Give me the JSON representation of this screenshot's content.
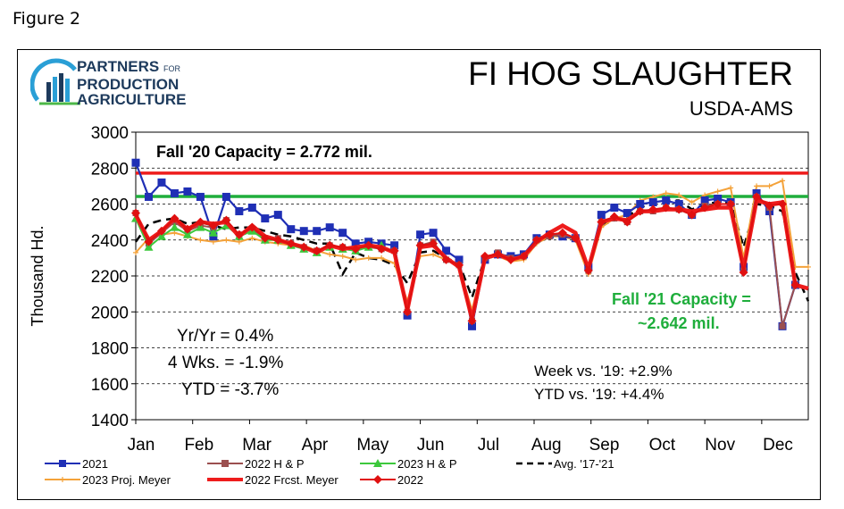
{
  "figure_label": "Figure 2",
  "logo": {
    "line1": "PARTNERS",
    "line1_small": "FOR",
    "line2": "PRODUCTION",
    "line3": "AGRICULTURE"
  },
  "chart_data": {
    "type": "line",
    "title": "FI HOG SLAUGHTER",
    "subtitle": "USDA-AMS",
    "ylabel": "Thousand Hd.",
    "ylim": [
      1400,
      3000
    ],
    "yticks": [
      1400,
      1600,
      1800,
      2000,
      2200,
      2400,
      2600,
      2800,
      3000
    ],
    "x_labels": [
      "Jan",
      "Feb",
      "Mar",
      "Apr",
      "May",
      "Jun",
      "Jul",
      "Aug",
      "Sep",
      "Oct",
      "Nov",
      "Dec"
    ],
    "x_range_weeks": [
      1,
      53
    ],
    "grid": "horizontal dashed",
    "reference_lines": [
      {
        "label": "Fall '20 Capacity = 2.772 mil.",
        "value": 2772,
        "color": "#ee1c1c"
      },
      {
        "label": "Fall '21 Capacity = ~2.642 mil.",
        "label_line1": "Fall '21 Capacity =",
        "label_line2": "~2.642 mil.",
        "value": 2642,
        "color": "#1fae3c"
      }
    ],
    "annotations": {
      "yr_yr": "Yr/Yr = 0.4%",
      "four_wks": "4 Wks. = -1.9%",
      "ytd": "YTD = -3.7%",
      "week_vs_19": "Week vs. '19:  +2.9%",
      "ytd_vs_19": "YTD vs. '19: +4.4%"
    },
    "series": [
      {
        "name": "2021",
        "color": "#1f2fb5",
        "style": "square",
        "x": [
          1,
          2,
          3,
          4,
          5,
          6,
          7,
          8,
          9,
          10,
          11,
          12,
          13,
          14,
          15,
          16,
          17,
          18,
          19,
          20,
          21,
          22,
          23,
          24,
          25,
          26,
          27,
          28,
          29,
          30,
          31,
          32,
          33,
          34,
          35,
          36,
          37,
          38,
          39,
          40,
          41,
          42,
          43,
          44,
          45,
          46,
          47,
          48,
          49,
          50,
          51,
          52
        ],
        "values": [
          2830,
          2640,
          2720,
          2660,
          2670,
          2640,
          2420,
          2640,
          2560,
          2580,
          2520,
          2540,
          2460,
          2450,
          2450,
          2470,
          2440,
          2380,
          2390,
          2380,
          2370,
          1980,
          2430,
          2440,
          2340,
          2290,
          1920,
          2290,
          2320,
          2310,
          2320,
          2410,
          2430,
          2420,
          2410,
          2250,
          2540,
          2580,
          2550,
          2600,
          2610,
          2620,
          2600,
          2540,
          2620,
          2630,
          2610,
          2250,
          2660,
          2560,
          1920,
          2150
        ]
      },
      {
        "name": "2022 H & P",
        "color": "#9b4f4f",
        "style": "square",
        "x": [
          1,
          2,
          3,
          4,
          5,
          6,
          7,
          8,
          9,
          10,
          11,
          12,
          13,
          14,
          15,
          16,
          17,
          18,
          19,
          20,
          21,
          22,
          23,
          24,
          25,
          26,
          27,
          28,
          29,
          30,
          31,
          32,
          33,
          34,
          35,
          36,
          37,
          38,
          39,
          40,
          41,
          42,
          43,
          44,
          45,
          46,
          47,
          48,
          49,
          50,
          51,
          52
        ],
        "values": [
          2550,
          2380,
          2440,
          2500,
          2450,
          2480,
          2470,
          2510,
          2430,
          2460,
          2410,
          2410,
          2380,
          2360,
          2340,
          2370,
          2360,
          2350,
          2360,
          2350,
          2340,
          2000,
          2370,
          2390,
          2290,
          2260,
          1950,
          2300,
          2330,
          2300,
          2310,
          2400,
          2420,
          2430,
          2410,
          2230,
          2500,
          2520,
          2500,
          2560,
          2560,
          2580,
          2570,
          2540,
          2590,
          2600,
          2600,
          2230,
          2640,
          2580,
          1920,
          2150
        ]
      },
      {
        "name": "2023 H & P",
        "color": "#3cc83c",
        "style": "triangle",
        "x": [
          1,
          2,
          3,
          4,
          5,
          6,
          7,
          8,
          9,
          10,
          11,
          12,
          13,
          14,
          15,
          16,
          17,
          18,
          19,
          20
        ],
        "values": [
          2520,
          2360,
          2420,
          2470,
          2430,
          2470,
          2440,
          2480,
          2420,
          2450,
          2400,
          2400,
          2370,
          2350,
          2330,
          2360,
          2350,
          2340,
          2360,
          2370
        ]
      },
      {
        "name": "Avg. '17-'21",
        "color": "#000000",
        "style": "dashed",
        "x": [
          1,
          2,
          3,
          4,
          5,
          6,
          7,
          8,
          9,
          10,
          11,
          12,
          13,
          14,
          15,
          16,
          17,
          18,
          19,
          20,
          21,
          22,
          23,
          24,
          25,
          26,
          27,
          28,
          29,
          30,
          31,
          32,
          33,
          34,
          35,
          36,
          37,
          38,
          39,
          40,
          41,
          42,
          43,
          44,
          45,
          46,
          47,
          48,
          49,
          50,
          51,
          52,
          53
        ],
        "values": [
          2390,
          2490,
          2510,
          2520,
          2490,
          2500,
          2480,
          2460,
          2470,
          2470,
          2450,
          2430,
          2420,
          2400,
          2380,
          2380,
          2210,
          2330,
          2300,
          2290,
          2260,
          2160,
          2330,
          2340,
          2300,
          2270,
          2080,
          2300,
          2310,
          2290,
          2300,
          2380,
          2420,
          2430,
          2400,
          2250,
          2480,
          2510,
          2530,
          2580,
          2610,
          2620,
          2620,
          2570,
          2600,
          2610,
          2610,
          2360,
          2600,
          2590,
          2560,
          2220,
          2060
        ]
      },
      {
        "name": "2023 Proj. Meyer",
        "color": "#f4a23a",
        "style": "plus",
        "x": [
          1,
          2,
          3,
          4,
          5,
          6,
          7,
          8,
          9,
          10,
          11,
          12,
          13,
          14,
          15,
          16,
          17,
          18,
          19,
          20,
          21,
          22,
          23,
          24,
          25,
          26,
          27,
          28,
          29,
          30,
          31,
          32,
          33,
          34,
          35,
          36,
          37,
          38,
          39,
          40,
          41,
          42,
          43,
          44,
          45,
          46,
          47,
          48,
          49,
          50,
          51,
          52,
          53
        ],
        "values": [
          2330,
          2410,
          2430,
          2440,
          2420,
          2400,
          2390,
          2400,
          2390,
          2410,
          2390,
          2380,
          2370,
          2370,
          2340,
          2320,
          2310,
          2290,
          2300,
          2300,
          2270,
          2060,
          2310,
          2320,
          2290,
          2250,
          2010,
          2300,
          2310,
          2280,
          2290,
          2380,
          2420,
          2420,
          2400,
          2210,
          2470,
          2520,
          2540,
          2620,
          2640,
          2660,
          2650,
          2610,
          2650,
          2670,
          2690,
          2300,
          2700,
          2700,
          2730,
          2250,
          2250
        ]
      },
      {
        "name": "2022 Frcst. Meyer",
        "color": "#ee1c1c",
        "style": "thick",
        "x": [
          1,
          2,
          3,
          4,
          5,
          6,
          7,
          8,
          9,
          10,
          11,
          12,
          13,
          14,
          15,
          16,
          17,
          18,
          19,
          20,
          21,
          22,
          23,
          24,
          25,
          26,
          27,
          28,
          29,
          30,
          31,
          32,
          33,
          34,
          35,
          36,
          37,
          38,
          39,
          40,
          41,
          42,
          43,
          44,
          45,
          46,
          47,
          48,
          49,
          50,
          51,
          52,
          53
        ],
        "values": [
          2540,
          2400,
          2450,
          2520,
          2460,
          2500,
          2490,
          2500,
          2420,
          2480,
          2420,
          2400,
          2380,
          2360,
          2330,
          2370,
          2350,
          2360,
          2370,
          2360,
          2330,
          2010,
          2360,
          2370,
          2300,
          2250,
          1960,
          2300,
          2320,
          2290,
          2310,
          2390,
          2440,
          2480,
          2440,
          2240,
          2500,
          2520,
          2510,
          2560,
          2560,
          2570,
          2570,
          2560,
          2570,
          2580,
          2580,
          2240,
          2620,
          2600,
          2610,
          2150,
          2130
        ]
      },
      {
        "name": "2022",
        "color": "#e01010",
        "style": "diamond",
        "x": [
          1,
          2,
          3,
          4,
          5,
          6,
          7,
          8,
          9,
          10,
          11,
          12,
          13,
          14,
          15,
          16,
          17,
          18,
          19,
          20,
          21,
          22,
          23,
          24,
          25,
          26,
          27,
          28,
          29,
          30,
          31,
          32,
          33,
          34,
          35,
          36,
          37,
          38,
          39,
          40,
          41,
          42,
          43,
          44,
          45,
          46,
          47,
          48,
          49,
          50,
          51,
          52
        ],
        "values": [
          2550,
          2390,
          2450,
          2520,
          2460,
          2500,
          2480,
          2510,
          2430,
          2470,
          2410,
          2400,
          2380,
          2360,
          2340,
          2370,
          2360,
          2350,
          2370,
          2350,
          2340,
          2000,
          2370,
          2380,
          2290,
          2260,
          1950,
          2310,
          2320,
          2290,
          2310,
          2400,
          2430,
          2440,
          2410,
          2230,
          2500,
          2530,
          2500,
          2560,
          2570,
          2580,
          2570,
          2540,
          2580,
          2600,
          2600,
          2220,
          2640,
          2590,
          2600,
          2150
        ]
      }
    ]
  }
}
